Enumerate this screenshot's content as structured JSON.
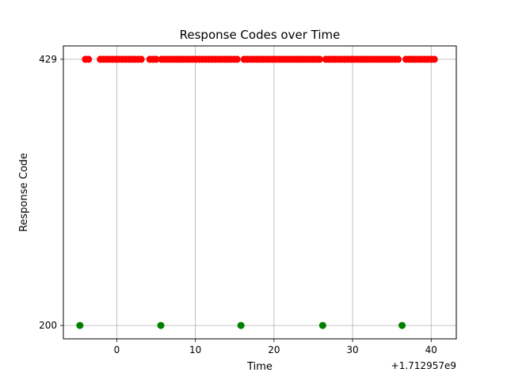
{
  "chart_data": {
    "type": "scatter",
    "title": "Response Codes over Time",
    "xlabel": "Time",
    "ylabel": "Response Code",
    "x_offset_label": "+1.712957e9",
    "xlim": [
      -6.8,
      43.2
    ],
    "ylim": [
      188.5,
      440.5
    ],
    "x_ticks": [
      0,
      10,
      20,
      30,
      40
    ],
    "y_ticks": [
      200,
      429
    ],
    "grid": true,
    "series": [
      {
        "color": "#ff0000",
        "y": 429,
        "x": [
          -4.0,
          -3.6,
          -2.1,
          -1.7,
          -1.3,
          -0.9,
          -0.5,
          -0.1,
          0.3,
          0.7,
          1.1,
          1.5,
          1.9,
          2.3,
          2.7,
          3.1,
          4.2,
          4.6,
          5.0,
          5.7,
          6.1,
          6.5,
          6.9,
          7.3,
          7.7,
          8.1,
          8.5,
          8.9,
          9.3,
          9.7,
          10.1,
          10.5,
          10.9,
          11.3,
          11.7,
          12.1,
          12.5,
          12.9,
          13.3,
          13.7,
          14.1,
          14.5,
          14.9,
          15.3,
          16.2,
          16.6,
          17.0,
          17.4,
          17.8,
          18.2,
          18.6,
          19.0,
          19.4,
          19.8,
          20.2,
          20.6,
          21.0,
          21.4,
          21.8,
          22.2,
          22.6,
          23.0,
          23.4,
          23.8,
          24.2,
          24.6,
          25.0,
          25.4,
          25.8,
          26.6,
          27.0,
          27.4,
          27.8,
          28.2,
          28.6,
          29.0,
          29.4,
          29.8,
          30.2,
          30.6,
          31.0,
          31.4,
          31.8,
          32.2,
          32.6,
          33.0,
          33.4,
          33.8,
          34.2,
          34.6,
          35.0,
          35.4,
          35.8,
          36.8,
          37.2,
          37.6,
          38.0,
          38.4,
          38.8,
          39.2,
          39.6,
          40.0,
          40.4
        ]
      },
      {
        "color": "#008000",
        "y": 200,
        "x": [
          -4.7,
          5.6,
          15.8,
          26.2,
          36.3
        ]
      }
    ]
  }
}
